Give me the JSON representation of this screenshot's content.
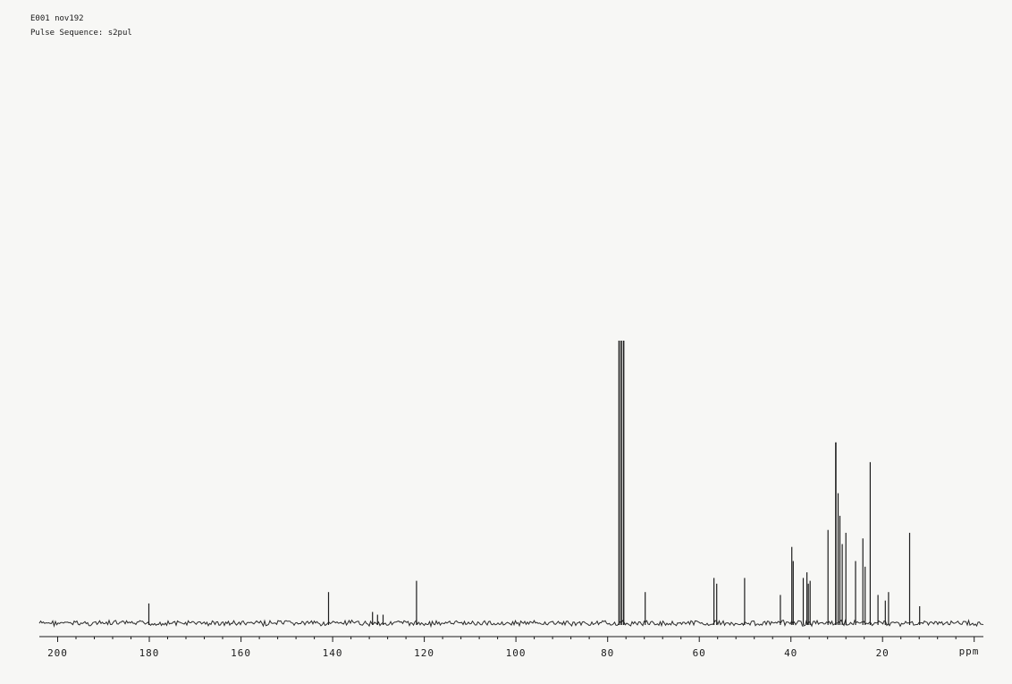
{
  "header": {
    "sample_line": "E001 nov192",
    "pulse_line": "Pulse Sequence: s2pul"
  },
  "chart_data": {
    "type": "line",
    "title": "",
    "xlabel": "ppm",
    "ylabel": "",
    "x_reversed": true,
    "xlim": [
      204,
      -2
    ],
    "ylim": [
      0,
      100
    ],
    "x_ticks": [
      200,
      180,
      160,
      140,
      120,
      100,
      80,
      60,
      40,
      20
    ],
    "grid": false,
    "series": [
      {
        "peaks": [
          {
            "x": 180.1,
            "y": 7
          },
          {
            "x": 140.9,
            "y": 11
          },
          {
            "x": 131.3,
            "y": 4
          },
          {
            "x": 130.2,
            "y": 3
          },
          {
            "x": 129.0,
            "y": 3
          },
          {
            "x": 121.7,
            "y": 15
          },
          {
            "x": 77.5,
            "y": 100
          },
          {
            "x": 77.0,
            "y": 100
          },
          {
            "x": 76.5,
            "y": 100
          },
          {
            "x": 71.8,
            "y": 11
          },
          {
            "x": 56.8,
            "y": 16
          },
          {
            "x": 56.2,
            "y": 14
          },
          {
            "x": 50.1,
            "y": 16
          },
          {
            "x": 42.3,
            "y": 10
          },
          {
            "x": 39.8,
            "y": 27
          },
          {
            "x": 39.5,
            "y": 22
          },
          {
            "x": 37.3,
            "y": 16
          },
          {
            "x": 36.5,
            "y": 18
          },
          {
            "x": 36.2,
            "y": 14
          },
          {
            "x": 35.8,
            "y": 15
          },
          {
            "x": 31.9,
            "y": 33
          },
          {
            "x": 30.2,
            "y": 64
          },
          {
            "x": 29.7,
            "y": 46
          },
          {
            "x": 29.3,
            "y": 38
          },
          {
            "x": 28.8,
            "y": 28
          },
          {
            "x": 28.0,
            "y": 32
          },
          {
            "x": 25.9,
            "y": 22
          },
          {
            "x": 24.3,
            "y": 30
          },
          {
            "x": 23.8,
            "y": 20
          },
          {
            "x": 22.7,
            "y": 57
          },
          {
            "x": 21.0,
            "y": 10
          },
          {
            "x": 19.4,
            "y": 8
          },
          {
            "x": 18.7,
            "y": 11
          },
          {
            "x": 14.1,
            "y": 32
          },
          {
            "x": 11.9,
            "y": 6
          }
        ]
      }
    ]
  }
}
